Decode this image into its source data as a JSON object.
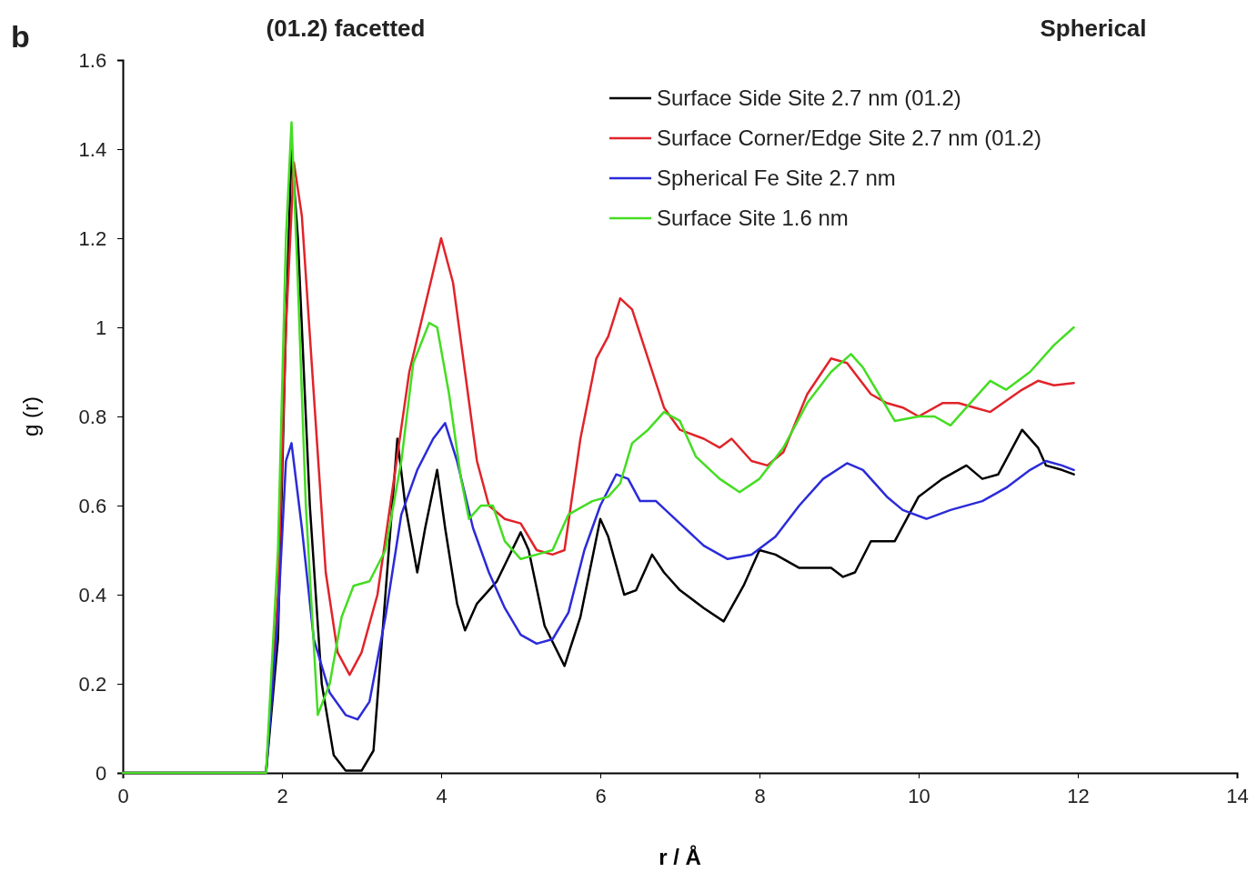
{
  "chart_data": {
    "type": "line",
    "xlabel": "r / Å",
    "ylabel": "g (r)",
    "xlim": [
      0,
      14
    ],
    "xticks": [
      0,
      2,
      4,
      6,
      8,
      10,
      12,
      14
    ],
    "ylim": [
      0,
      1.6
    ],
    "yticks": [
      0,
      0.2,
      0.4,
      0.6,
      0.8,
      1,
      1.2,
      1.4,
      1.6
    ],
    "grid": false,
    "legend": "top right",
    "marker": "none",
    "line_style": "solid",
    "annotations": [
      "b",
      "(01.2) facetted",
      "Spherical"
    ],
    "series": [
      {
        "name": "Surface Side Site 2.7 nm (01.2)",
        "color": "#000000",
        "x": [
          0,
          1.8,
          1.95,
          2.05,
          2.12,
          2.2,
          2.35,
          2.5,
          2.65,
          2.8,
          3.0,
          3.15,
          3.3,
          3.45,
          3.55,
          3.7,
          3.8,
          3.95,
          4.05,
          4.2,
          4.3,
          4.45,
          4.7,
          5.0,
          5.1,
          5.3,
          5.55,
          5.75,
          6.0,
          6.1,
          6.3,
          6.45,
          6.65,
          6.8,
          7.0,
          7.3,
          7.55,
          7.8,
          8.0,
          8.2,
          8.5,
          8.9,
          9.05,
          9.2,
          9.4,
          9.7,
          10.0,
          10.3,
          10.6,
          10.8,
          11.0,
          11.3,
          11.5,
          11.6,
          11.8,
          11.95
        ],
        "values": [
          0,
          0,
          0.3,
          1.0,
          1.4,
          1.2,
          0.6,
          0.2,
          0.04,
          0.005,
          0.005,
          0.05,
          0.4,
          0.75,
          0.6,
          0.45,
          0.55,
          0.68,
          0.55,
          0.38,
          0.32,
          0.38,
          0.43,
          0.54,
          0.5,
          0.33,
          0.24,
          0.35,
          0.57,
          0.53,
          0.4,
          0.41,
          0.49,
          0.45,
          0.41,
          0.37,
          0.34,
          0.42,
          0.5,
          0.49,
          0.46,
          0.46,
          0.44,
          0.45,
          0.52,
          0.52,
          0.62,
          0.66,
          0.69,
          0.66,
          0.67,
          0.77,
          0.73,
          0.69,
          0.68,
          0.67
        ]
      },
      {
        "name": "Surface Corner/Edge Site 2.7 nm (01.2)",
        "color": "#e0242a",
        "x": [
          0,
          1.8,
          1.95,
          2.05,
          2.15,
          2.25,
          2.4,
          2.55,
          2.7,
          2.85,
          3.0,
          3.2,
          3.4,
          3.6,
          3.8,
          4.0,
          4.15,
          4.3,
          4.45,
          4.6,
          4.8,
          5.0,
          5.2,
          5.4,
          5.55,
          5.75,
          5.95,
          6.1,
          6.25,
          6.4,
          6.6,
          6.8,
          7.0,
          7.3,
          7.5,
          7.65,
          7.9,
          8.1,
          8.3,
          8.6,
          8.9,
          9.1,
          9.4,
          9.6,
          9.8,
          10.0,
          10.3,
          10.5,
          10.7,
          10.9,
          11.3,
          11.5,
          11.7,
          11.95
        ],
        "values": [
          0,
          0,
          0.4,
          1.0,
          1.37,
          1.25,
          0.85,
          0.45,
          0.27,
          0.22,
          0.27,
          0.4,
          0.65,
          0.9,
          1.05,
          1.2,
          1.1,
          0.9,
          0.7,
          0.6,
          0.57,
          0.56,
          0.5,
          0.49,
          0.5,
          0.75,
          0.93,
          0.98,
          1.065,
          1.04,
          0.93,
          0.82,
          0.77,
          0.75,
          0.73,
          0.75,
          0.7,
          0.69,
          0.72,
          0.85,
          0.93,
          0.92,
          0.85,
          0.83,
          0.82,
          0.8,
          0.83,
          0.83,
          0.82,
          0.81,
          0.86,
          0.88,
          0.87,
          0.875
        ]
      },
      {
        "name": "Spherical Fe Site 2.7 nm",
        "color": "#2b2bd9",
        "x": [
          0,
          1.8,
          1.95,
          2.05,
          2.12,
          2.25,
          2.4,
          2.6,
          2.8,
          2.95,
          3.1,
          3.3,
          3.5,
          3.7,
          3.9,
          4.05,
          4.2,
          4.4,
          4.6,
          4.8,
          5.0,
          5.2,
          5.4,
          5.6,
          5.8,
          6.0,
          6.2,
          6.35,
          6.5,
          6.7,
          7.0,
          7.3,
          7.6,
          7.9,
          8.2,
          8.5,
          8.8,
          9.1,
          9.3,
          9.6,
          9.8,
          10.1,
          10.4,
          10.8,
          11.1,
          11.4,
          11.6,
          11.8,
          11.95
        ],
        "values": [
          0,
          0,
          0.35,
          0.7,
          0.74,
          0.55,
          0.3,
          0.18,
          0.13,
          0.12,
          0.16,
          0.35,
          0.58,
          0.68,
          0.75,
          0.785,
          0.7,
          0.55,
          0.45,
          0.37,
          0.31,
          0.29,
          0.3,
          0.36,
          0.5,
          0.6,
          0.67,
          0.66,
          0.61,
          0.61,
          0.56,
          0.51,
          0.48,
          0.49,
          0.53,
          0.6,
          0.66,
          0.695,
          0.68,
          0.62,
          0.59,
          0.57,
          0.59,
          0.61,
          0.64,
          0.68,
          0.7,
          0.69,
          0.68
        ]
      },
      {
        "name": "Surface Site 1.6 nm",
        "color": "#44dd22",
        "x": [
          0,
          1.8,
          1.95,
          2.05,
          2.12,
          2.2,
          2.3,
          2.45,
          2.6,
          2.75,
          2.9,
          3.1,
          3.3,
          3.5,
          3.65,
          3.85,
          3.95,
          4.1,
          4.25,
          4.35,
          4.5,
          4.65,
          4.8,
          5.0,
          5.2,
          5.4,
          5.6,
          5.9,
          6.1,
          6.25,
          6.4,
          6.6,
          6.8,
          7.0,
          7.2,
          7.5,
          7.75,
          8.0,
          8.3,
          8.6,
          8.9,
          9.15,
          9.3,
          9.5,
          9.7,
          10.0,
          10.2,
          10.4,
          10.6,
          10.9,
          11.1,
          11.4,
          11.7,
          11.95
        ],
        "values": [
          0,
          0,
          0.5,
          1.2,
          1.46,
          1.1,
          0.6,
          0.13,
          0.2,
          0.35,
          0.42,
          0.43,
          0.5,
          0.7,
          0.92,
          1.01,
          1.0,
          0.85,
          0.66,
          0.57,
          0.6,
          0.6,
          0.52,
          0.48,
          0.49,
          0.5,
          0.58,
          0.61,
          0.62,
          0.65,
          0.74,
          0.77,
          0.81,
          0.79,
          0.71,
          0.66,
          0.63,
          0.66,
          0.73,
          0.83,
          0.9,
          0.94,
          0.91,
          0.85,
          0.79,
          0.8,
          0.8,
          0.78,
          0.82,
          0.88,
          0.86,
          0.9,
          0.96,
          1.0
        ]
      }
    ]
  }
}
